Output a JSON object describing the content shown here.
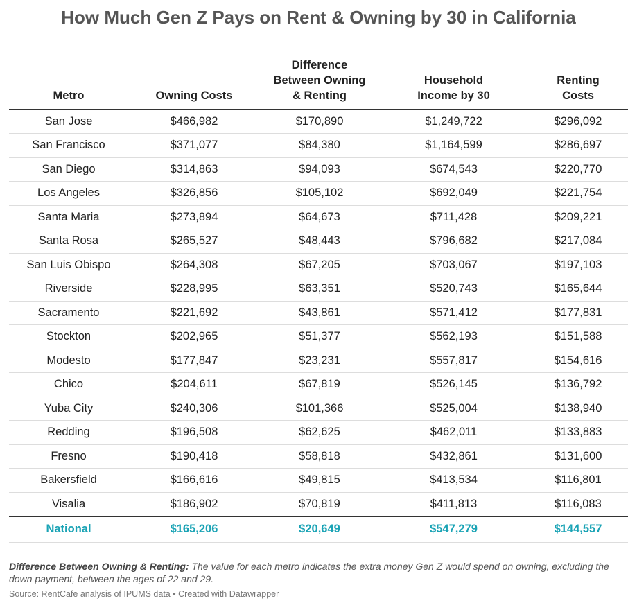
{
  "title": "How Much Gen Z Pays on Rent & Owning by 30 in California",
  "table": {
    "header": [
      "Metro",
      "Owning Costs",
      "Difference\nBetween Owning\n& Renting",
      "Household\nIncome by 30",
      "Renting\nCosts"
    ],
    "rows": [
      [
        "San Jose",
        "$466,982",
        "$170,890",
        "$1,249,722",
        "$296,092"
      ],
      [
        "San Francisco",
        "$371,077",
        "$84,380",
        "$1,164,599",
        "$286,697"
      ],
      [
        "San Diego",
        "$314,863",
        "$94,093",
        "$674,543",
        "$220,770"
      ],
      [
        "Los Angeles",
        "$326,856",
        "$105,102",
        "$692,049",
        "$221,754"
      ],
      [
        "Santa Maria",
        "$273,894",
        "$64,673",
        "$711,428",
        "$209,221"
      ],
      [
        "Santa Rosa",
        "$265,527",
        "$48,443",
        "$796,682",
        "$217,084"
      ],
      [
        "San Luis Obispo",
        "$264,308",
        "$67,205",
        "$703,067",
        "$197,103"
      ],
      [
        "Riverside",
        "$228,995",
        "$63,351",
        "$520,743",
        "$165,644"
      ],
      [
        "Sacramento",
        "$221,692",
        "$43,861",
        "$571,412",
        "$177,831"
      ],
      [
        "Stockton",
        "$202,965",
        "$51,377",
        "$562,193",
        "$151,588"
      ],
      [
        "Modesto",
        "$177,847",
        "$23,231",
        "$557,817",
        "$154,616"
      ],
      [
        "Chico",
        "$204,611",
        "$67,819",
        "$526,145",
        "$136,792"
      ],
      [
        "Yuba City",
        "$240,306",
        "$101,366",
        "$525,004",
        "$138,940"
      ],
      [
        "Redding",
        "$196,508",
        "$62,625",
        "$462,011",
        "$133,883"
      ],
      [
        "Fresno",
        "$190,418",
        "$58,818",
        "$432,861",
        "$131,600"
      ],
      [
        "Bakersfield",
        "$166,616",
        "$49,815",
        "$413,534",
        "$116,801"
      ],
      [
        "Visalia",
        "$186,902",
        "$70,819",
        "$411,813",
        "$116,083"
      ]
    ],
    "total": [
      "National",
      "$165,206",
      "$20,649",
      "$547,279",
      "$144,557"
    ]
  },
  "note": {
    "label": "Difference Between Owning & Renting:",
    "text": "The value for each metro indicates the extra money Gen Z would spend on owning, excluding the down payment, between the ages of 22 and 29."
  },
  "source": "Source: RentCafe analysis of IPUMS data • Created with Datawrapper"
}
